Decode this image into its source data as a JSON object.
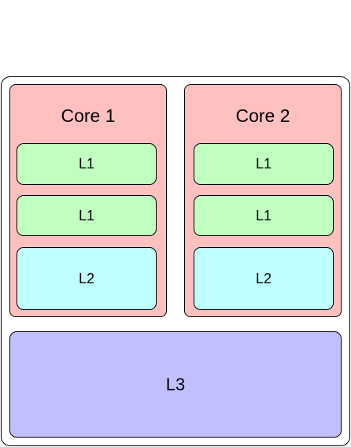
{
  "diagram": {
    "cores": [
      {
        "title": "Core 1",
        "caches": [
          "L1",
          "L1",
          "L2"
        ]
      },
      {
        "title": "Core 2",
        "caches": [
          "L1",
          "L1",
          "L2"
        ]
      }
    ],
    "shared_cache": "L3"
  },
  "colors": {
    "chip": "#ffffff",
    "core": "#ffc0c0",
    "l1": "#c0ffc0",
    "l2": "#c0ffff",
    "l3": "#c0c0ff"
  }
}
